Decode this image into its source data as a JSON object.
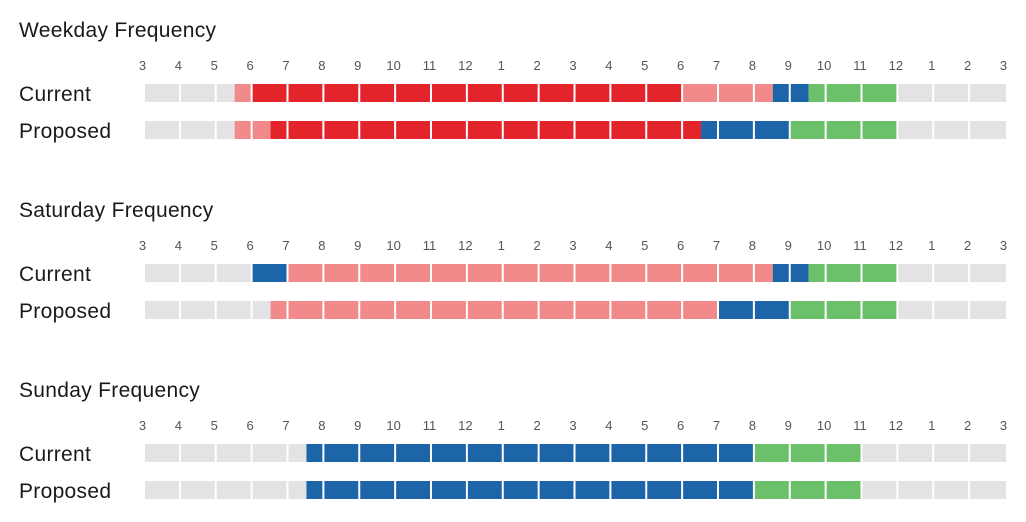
{
  "chart_data": {
    "type": "heatmap",
    "hour_labels": [
      "3",
      "4",
      "5",
      "6",
      "7",
      "8",
      "9",
      "10",
      "11",
      "12",
      "1",
      "2",
      "3",
      "4",
      "5",
      "6",
      "7",
      "8",
      "9",
      "10",
      "11",
      "12",
      "1",
      "2",
      "3"
    ],
    "colors": {
      "none": "#e3e3e5",
      "light": "#f28a8b",
      "high": "#e3242b",
      "medium": "#1b65a8",
      "low": "#6cc06a"
    },
    "panels": [
      {
        "title": "Weekday Frequency",
        "rows": [
          {
            "label": "Current",
            "segments": [
              {
                "from": "3:00 AM",
                "to": "5:30 AM",
                "level": "none"
              },
              {
                "from": "5:30 AM",
                "to": "6:00 AM",
                "level": "light"
              },
              {
                "from": "6:00 AM",
                "to": "6:00 PM",
                "level": "high"
              },
              {
                "from": "6:00 PM",
                "to": "8:30 PM",
                "level": "light"
              },
              {
                "from": "8:30 PM",
                "to": "9:30 PM",
                "level": "medium"
              },
              {
                "from": "9:30 PM",
                "to": "12:00 AM",
                "level": "low"
              },
              {
                "from": "12:00 AM",
                "to": "3:00 AM",
                "level": "none"
              }
            ]
          },
          {
            "label": "Proposed",
            "segments": [
              {
                "from": "3:00 AM",
                "to": "5:30 AM",
                "level": "none"
              },
              {
                "from": "5:30 AM",
                "to": "6:30 AM",
                "level": "light"
              },
              {
                "from": "6:30 AM",
                "to": "6:30 PM",
                "level": "high"
              },
              {
                "from": "6:30 PM",
                "to": "9:00 PM",
                "level": "medium"
              },
              {
                "from": "9:00 PM",
                "to": "12:00 AM",
                "level": "low"
              },
              {
                "from": "12:00 AM",
                "to": "3:00 AM",
                "level": "none"
              }
            ]
          }
        ]
      },
      {
        "title": "Saturday Frequency",
        "rows": [
          {
            "label": "Current",
            "segments": [
              {
                "from": "3:00 AM",
                "to": "6:00 AM",
                "level": "none"
              },
              {
                "from": "6:00 AM",
                "to": "7:00 AM",
                "level": "medium"
              },
              {
                "from": "7:00 AM",
                "to": "8:30 PM",
                "level": "light"
              },
              {
                "from": "8:30 PM",
                "to": "9:30 PM",
                "level": "medium"
              },
              {
                "from": "9:30 PM",
                "to": "12:00 AM",
                "level": "low"
              },
              {
                "from": "12:00 AM",
                "to": "3:00 AM",
                "level": "none"
              }
            ]
          },
          {
            "label": "Proposed",
            "segments": [
              {
                "from": "3:00 AM",
                "to": "6:30 AM",
                "level": "none"
              },
              {
                "from": "6:30 AM",
                "to": "7:00 PM",
                "level": "light"
              },
              {
                "from": "7:00 PM",
                "to": "9:00 PM",
                "level": "medium"
              },
              {
                "from": "9:00 PM",
                "to": "12:00 AM",
                "level": "low"
              },
              {
                "from": "12:00 AM",
                "to": "3:00 AM",
                "level": "none"
              }
            ]
          }
        ]
      },
      {
        "title": "Sunday Frequency",
        "rows": [
          {
            "label": "Current",
            "segments": [
              {
                "from": "3:00 AM",
                "to": "7:30 AM",
                "level": "none"
              },
              {
                "from": "7:30 AM",
                "to": "8:00 PM",
                "level": "medium"
              },
              {
                "from": "8:00 PM",
                "to": "11:00 PM",
                "level": "low"
              },
              {
                "from": "11:00 PM",
                "to": "3:00 AM",
                "level": "none"
              }
            ]
          },
          {
            "label": "Proposed",
            "segments": [
              {
                "from": "3:00 AM",
                "to": "7:30 AM",
                "level": "none"
              },
              {
                "from": "7:30 AM",
                "to": "8:00 PM",
                "level": "medium"
              },
              {
                "from": "8:00 PM",
                "to": "11:00 PM",
                "level": "low"
              },
              {
                "from": "11:00 PM",
                "to": "3:00 AM",
                "level": "none"
              }
            ]
          }
        ]
      }
    ]
  }
}
